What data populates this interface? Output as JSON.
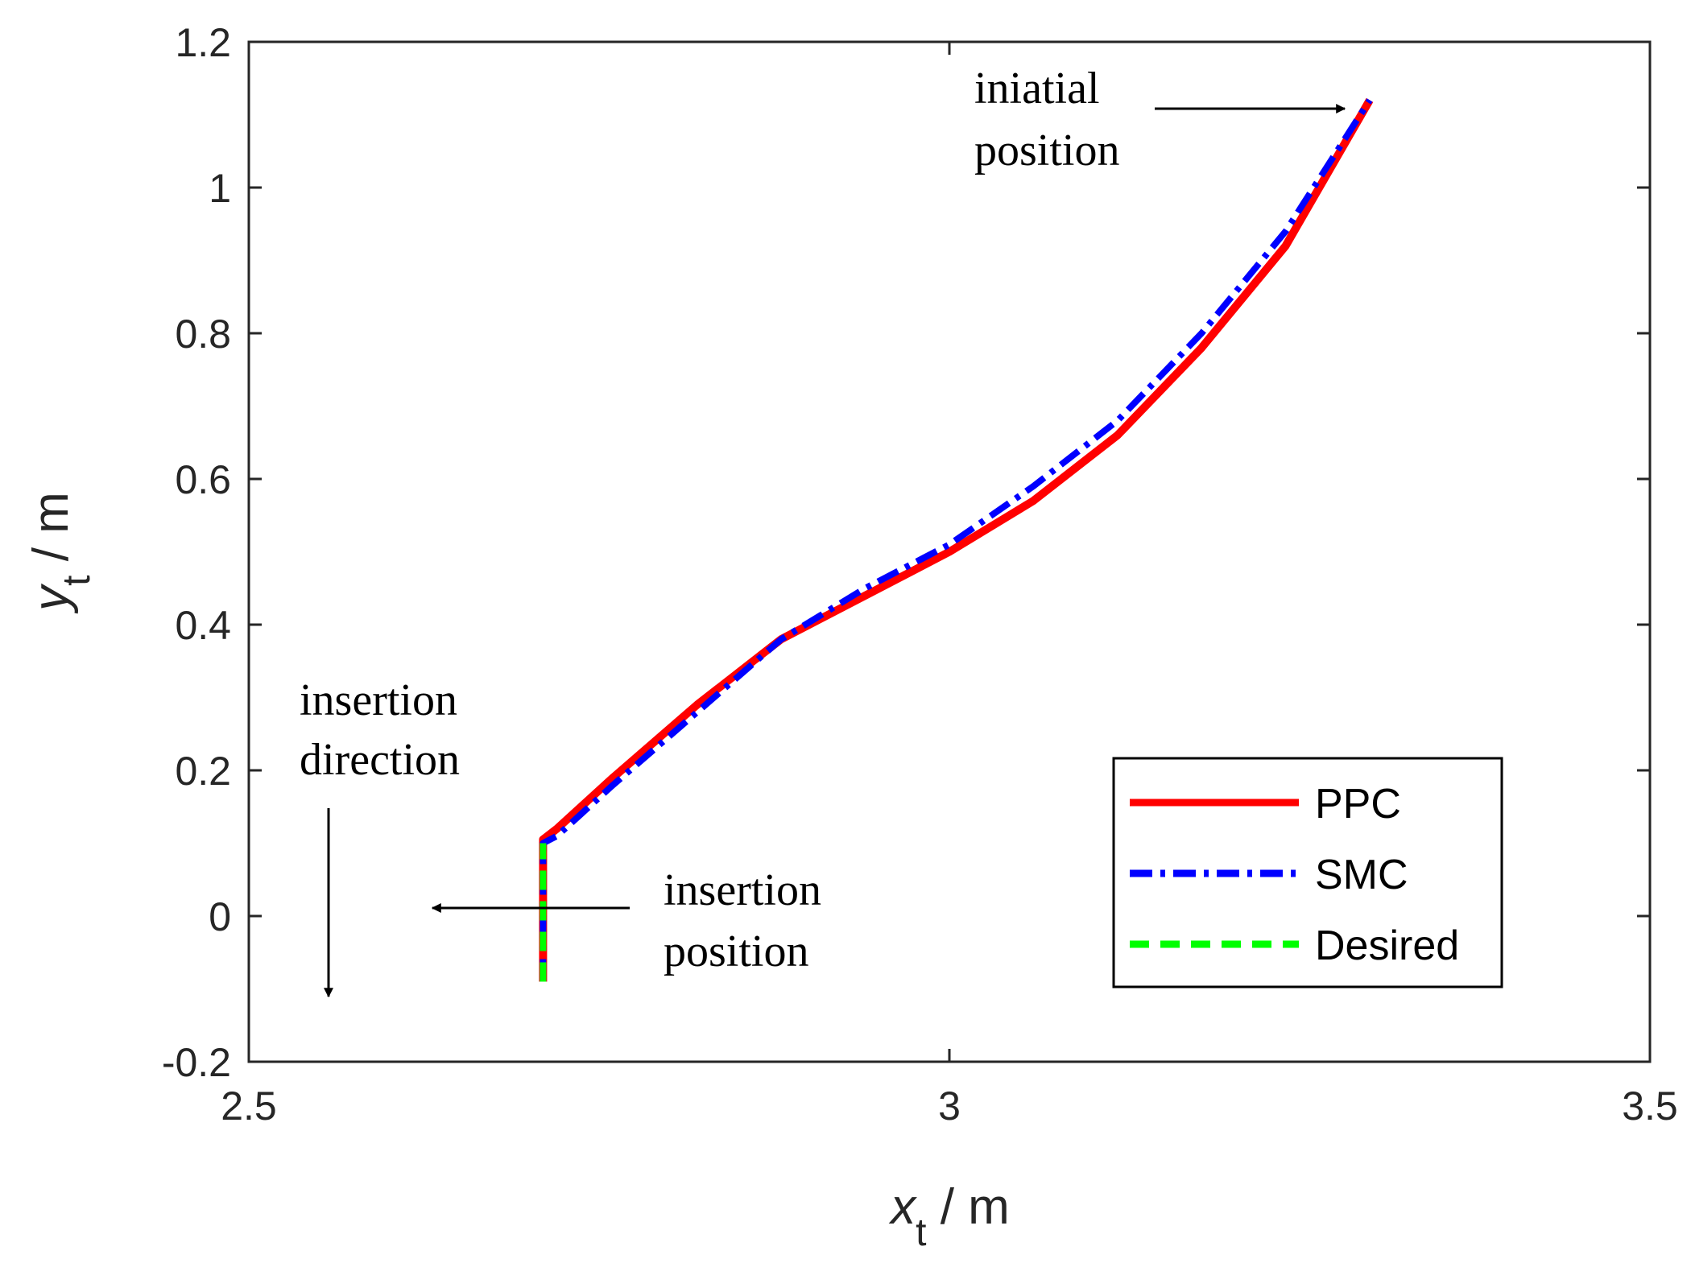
{
  "chart_data": {
    "type": "line",
    "title": "",
    "xlabel": {
      "symbol": "x",
      "subscript": "t",
      "unit": " / m"
    },
    "ylabel": {
      "symbol": "y",
      "subscript": "t",
      "unit": " / m"
    },
    "xlim": [
      2.5,
      3.5
    ],
    "ylim": [
      -0.2,
      1.2
    ],
    "xticks": [
      2.5,
      3,
      3.5
    ],
    "xtick_labels": [
      "2.5",
      "3",
      "3.5"
    ],
    "yticks": [
      -0.2,
      0,
      0.2,
      0.4,
      0.6,
      0.8,
      1,
      1.2
    ],
    "ytick_labels": [
      "-0.2",
      "0",
      "0.2",
      "0.4",
      "0.6",
      "0.8",
      "1",
      "1.2"
    ],
    "grid": false,
    "legend_position": "bottom-right",
    "series": [
      {
        "name": "PPC",
        "color": "#ff0000",
        "style": "solid",
        "x": [
          2.71,
          2.71,
          2.72,
          2.76,
          2.82,
          2.88,
          2.94,
          3.0,
          3.06,
          3.12,
          3.18,
          3.24,
          3.3
        ],
        "y": [
          -0.09,
          0.105,
          0.12,
          0.19,
          0.29,
          0.38,
          0.44,
          0.5,
          0.57,
          0.66,
          0.78,
          0.92,
          1.12
        ]
      },
      {
        "name": "SMC",
        "color": "#0000ff",
        "style": "dashdot",
        "x": [
          2.71,
          2.71,
          2.72,
          2.76,
          2.82,
          2.88,
          2.94,
          3.0,
          3.06,
          3.12,
          3.18,
          3.24,
          3.3
        ],
        "y": [
          -0.09,
          0.1,
          0.11,
          0.18,
          0.28,
          0.38,
          0.45,
          0.51,
          0.59,
          0.68,
          0.8,
          0.94,
          1.12
        ]
      },
      {
        "name": "Desired",
        "color": "#00ff00",
        "style": "dashed",
        "x": [
          2.71,
          2.71
        ],
        "y": [
          -0.09,
          0.1
        ]
      }
    ],
    "annotations": [
      {
        "id": "initial",
        "lines": [
          "iniatial",
          "position"
        ]
      },
      {
        "id": "insertion-direction",
        "lines": [
          "insertion",
          "direction"
        ]
      },
      {
        "id": "insertion-position",
        "lines": [
          "insertion",
          "position"
        ]
      }
    ]
  }
}
